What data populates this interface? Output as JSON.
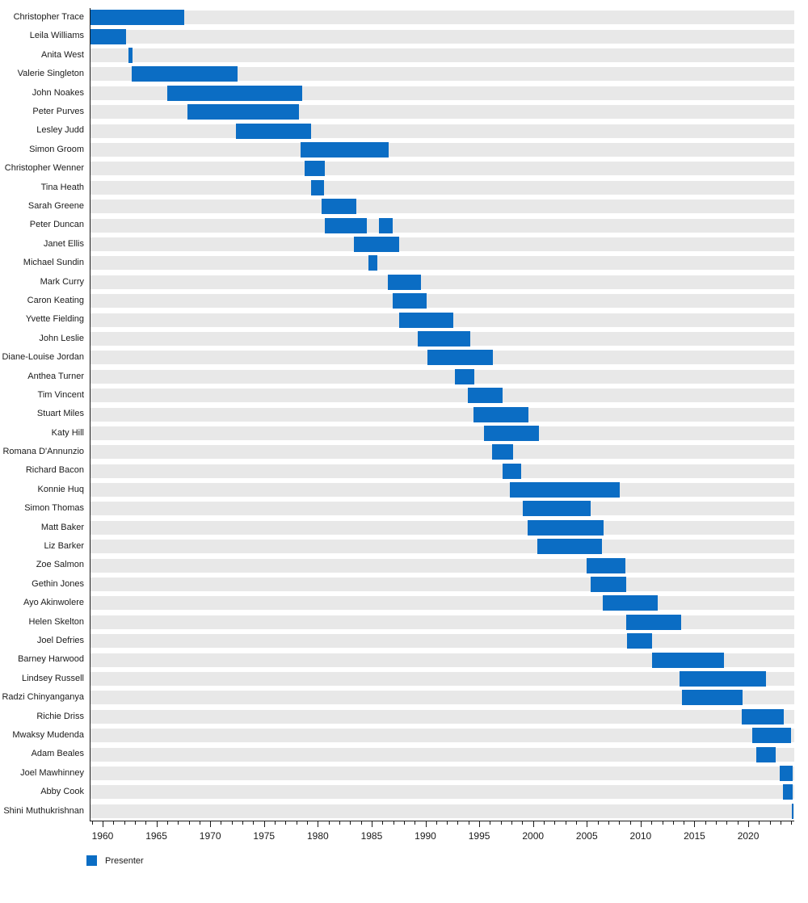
{
  "chart_data": {
    "type": "bar",
    "subtype": "gantt-timeline",
    "title": "",
    "xlabel": "",
    "ylabel": "",
    "xlim": [
      1958.8,
      2024.2
    ],
    "x_major_ticks": [
      1960,
      1965,
      1970,
      1975,
      1980,
      1985,
      1990,
      1995,
      2000,
      2005,
      2010,
      2015,
      2020
    ],
    "x_minor_tick_interval": 1,
    "grid": false,
    "legend": {
      "position": "bottom-left",
      "entries": [
        {
          "label": "Presenter",
          "color": "#0b6dc4"
        }
      ]
    },
    "colors": {
      "bar": "#0b6dc4",
      "row_band": "#e8e8e8",
      "axis": "#1a1a1a",
      "background": "#ffffff"
    },
    "categories": [
      "Christopher Trace",
      "Leila Williams",
      "Anita West",
      "Valerie Singleton",
      "John Noakes",
      "Peter Purves",
      "Lesley Judd",
      "Simon Groom",
      "Christopher Wenner",
      "Tina Heath",
      "Sarah Greene",
      "Peter Duncan",
      "Janet Ellis",
      "Michael Sundin",
      "Mark Curry",
      "Caron Keating",
      "Yvette Fielding",
      "John Leslie",
      "Diane-Louise Jordan",
      "Anthea Turner",
      "Tim Vincent",
      "Stuart Miles",
      "Katy Hill",
      "Romana D'Annunzio",
      "Richard Bacon",
      "Konnie Huq",
      "Simon Thomas",
      "Matt Baker",
      "Liz Barker",
      "Zoe Salmon",
      "Gethin Jones",
      "Ayo Akinwolere",
      "Helen Skelton",
      "Joel Defries",
      "Barney Harwood",
      "Lindsey Russell",
      "Radzi Chinyanganya",
      "Richie Driss",
      "Mwaksy Mudenda",
      "Adam Beales",
      "Joel Mawhinney",
      "Abby Cook",
      "Shini Muthukrishnan"
    ],
    "rows": [
      {
        "name": "Christopher Trace",
        "periods": [
          [
            1958.8,
            1967.5
          ]
        ]
      },
      {
        "name": "Leila Williams",
        "periods": [
          [
            1958.8,
            1962.1
          ]
        ]
      },
      {
        "name": "Anita West",
        "periods": [
          [
            1962.3,
            1962.7
          ]
        ]
      },
      {
        "name": "Valerie Singleton",
        "periods": [
          [
            1962.6,
            1972.5
          ]
        ]
      },
      {
        "name": "John Noakes",
        "periods": [
          [
            1965.9,
            1978.45
          ]
        ]
      },
      {
        "name": "Peter Purves",
        "periods": [
          [
            1967.8,
            1978.2
          ]
        ]
      },
      {
        "name": "Lesley Judd",
        "periods": [
          [
            1972.3,
            1979.3
          ]
        ]
      },
      {
        "name": "Simon Groom",
        "periods": [
          [
            1978.35,
            1986.5
          ]
        ]
      },
      {
        "name": "Christopher Wenner",
        "periods": [
          [
            1978.7,
            1980.6
          ]
        ]
      },
      {
        "name": "Tina Heath",
        "periods": [
          [
            1979.3,
            1980.5
          ]
        ]
      },
      {
        "name": "Sarah Greene",
        "periods": [
          [
            1980.3,
            1983.5
          ]
        ]
      },
      {
        "name": "Peter Duncan",
        "periods": [
          [
            1980.6,
            1984.5
          ],
          [
            1985.6,
            1986.9
          ]
        ]
      },
      {
        "name": "Janet Ellis",
        "periods": [
          [
            1983.3,
            1987.5
          ]
        ]
      },
      {
        "name": "Michael Sundin",
        "periods": [
          [
            1984.65,
            1985.45
          ]
        ]
      },
      {
        "name": "Mark Curry",
        "periods": [
          [
            1986.45,
            1989.5
          ]
        ]
      },
      {
        "name": "Caron Keating",
        "periods": [
          [
            1986.85,
            1990.05
          ]
        ]
      },
      {
        "name": "Yvette Fielding",
        "periods": [
          [
            1987.45,
            1992.5
          ]
        ]
      },
      {
        "name": "John Leslie",
        "periods": [
          [
            1989.2,
            1994.1
          ]
        ]
      },
      {
        "name": "Diane-Louise Jordan",
        "periods": [
          [
            1990.1,
            1996.2
          ]
        ]
      },
      {
        "name": "Anthea Turner",
        "periods": [
          [
            1992.65,
            1994.5
          ]
        ]
      },
      {
        "name": "Tim Vincent",
        "periods": [
          [
            1993.85,
            1997.1
          ]
        ]
      },
      {
        "name": "Stuart Miles",
        "periods": [
          [
            1994.4,
            1999.5
          ]
        ]
      },
      {
        "name": "Katy Hill",
        "periods": [
          [
            1995.4,
            2000.5
          ]
        ]
      },
      {
        "name": "Romana D'Annunzio",
        "periods": [
          [
            1996.1,
            1998.1
          ]
        ]
      },
      {
        "name": "Richard Bacon",
        "periods": [
          [
            1997.1,
            1998.8
          ]
        ]
      },
      {
        "name": "Konnie Huq",
        "periods": [
          [
            1997.8,
            2008.0
          ]
        ]
      },
      {
        "name": "Simon Thomas",
        "periods": [
          [
            1999.0,
            2005.3
          ]
        ]
      },
      {
        "name": "Matt Baker",
        "periods": [
          [
            1999.4,
            2006.45
          ]
        ]
      },
      {
        "name": "Liz Barker",
        "periods": [
          [
            2000.3,
            2006.3
          ]
        ]
      },
      {
        "name": "Zoe Salmon",
        "periods": [
          [
            2004.9,
            2008.5
          ]
        ]
      },
      {
        "name": "Gethin Jones",
        "periods": [
          [
            2005.3,
            2008.55
          ]
        ]
      },
      {
        "name": "Ayo Akinwolere",
        "periods": [
          [
            2006.4,
            2011.5
          ]
        ]
      },
      {
        "name": "Helen Skelton",
        "periods": [
          [
            2008.6,
            2013.7
          ]
        ]
      },
      {
        "name": "Joel Defries",
        "periods": [
          [
            2008.65,
            2011.0
          ]
        ]
      },
      {
        "name": "Barney Harwood",
        "periods": [
          [
            2011.0,
            2017.7
          ]
        ]
      },
      {
        "name": "Lindsey Russell",
        "periods": [
          [
            2013.55,
            2021.6
          ]
        ]
      },
      {
        "name": "Radzi Chinyanganya",
        "periods": [
          [
            2013.8,
            2019.4
          ]
        ]
      },
      {
        "name": "Richie Driss",
        "periods": [
          [
            2019.3,
            2023.2
          ]
        ]
      },
      {
        "name": "Mwaksy Mudenda",
        "periods": [
          [
            2020.3,
            2023.9
          ]
        ]
      },
      {
        "name": "Adam Beales",
        "periods": [
          [
            2020.65,
            2022.5
          ]
        ]
      },
      {
        "name": "Joel Mawhinney",
        "periods": [
          [
            2022.85,
            2024.05
          ]
        ]
      },
      {
        "name": "Abby Cook",
        "periods": [
          [
            2023.15,
            2024.05
          ]
        ]
      },
      {
        "name": "Shini Muthukrishnan",
        "periods": [
          [
            2024.0,
            2024.1
          ]
        ]
      }
    ]
  }
}
